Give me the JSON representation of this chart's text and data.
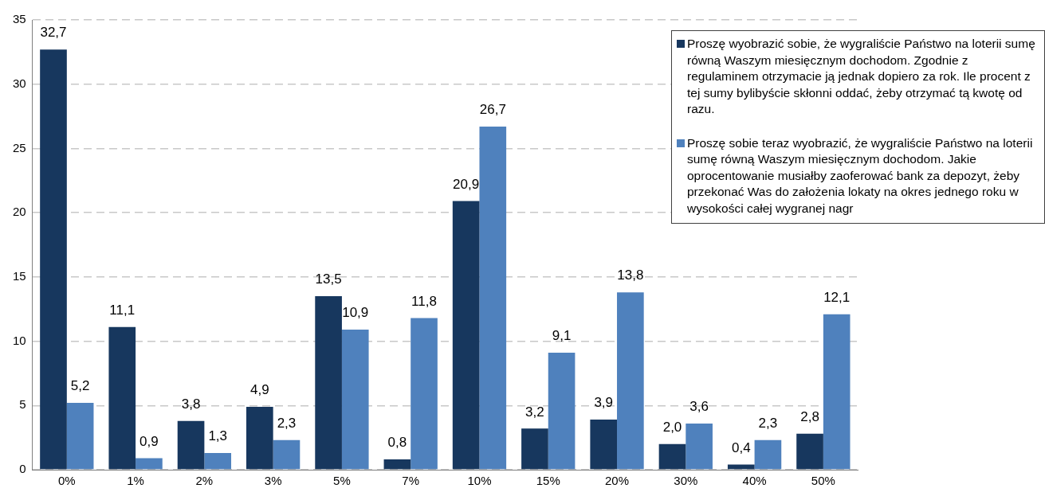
{
  "chart_data": {
    "type": "bar",
    "categories": [
      "0%",
      "1%",
      "2%",
      "3%",
      "5%",
      "7%",
      "10%",
      "15%",
      "20%",
      "30%",
      "40%",
      "50%"
    ],
    "series": [
      {
        "name": "Proszę wyobrazić sobie, że wygraliście Państwo na loterii sumę równą Waszym miesięcznym dochodom. Zgodnie z regulaminem otrzymacie ją jednak dopiero za rok. Ile procent z tej sumy bylibyście skłonni oddać, żeby otrzymać tą kwotę od razu.",
        "color": "#17375e",
        "values": [
          32.7,
          11.1,
          3.8,
          4.9,
          13.5,
          0.8,
          20.9,
          3.2,
          3.9,
          2.0,
          0.4,
          2.8
        ],
        "value_labels": [
          "32,7",
          "11,1",
          "3,8",
          "4,9",
          "13,5",
          "0,8",
          "20,9",
          "3,2",
          "3,9",
          "2,0",
          "0,4",
          "2,8"
        ]
      },
      {
        "name": "Proszę sobie teraz wyobrazić, że wygraliście Państwo na loterii sumę równą Waszym miesięcznym dochodom. Jakie oprocentowanie musiałby zaoferować bank za depozyt, żeby przekonać Was do założenia lokaty  na okres jednego roku w wysokości całej wygranej nagr",
        "color": "#4f81bd",
        "values": [
          5.2,
          0.9,
          1.3,
          2.3,
          10.9,
          11.8,
          26.7,
          9.1,
          13.8,
          3.6,
          2.3,
          12.1
        ],
        "value_labels": [
          "5,2",
          "0,9",
          "1,3",
          "2,3",
          "10,9",
          "11,8",
          "26,7",
          "9,1",
          "13,8",
          "3,6",
          "2,3",
          "12,1"
        ]
      }
    ],
    "ylim": [
      0,
      35
    ],
    "yticks": [
      0,
      5,
      10,
      15,
      20,
      25,
      30,
      35
    ],
    "grid": "y",
    "legend": "top right"
  }
}
